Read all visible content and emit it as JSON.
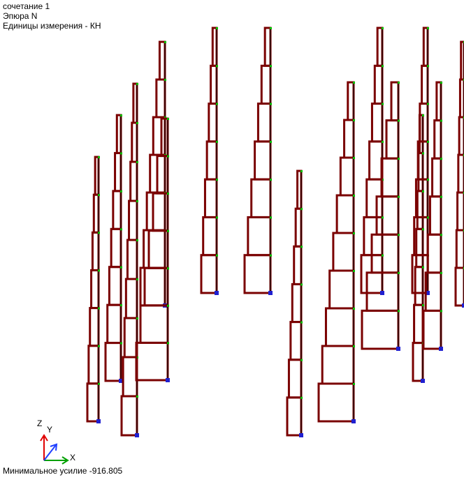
{
  "header": {
    "combination": "сочетание 1",
    "diagram": "Эпюра  N",
    "units": "Единицы измерения - КН"
  },
  "axes": {
    "z": "Z",
    "y": "Y",
    "x": "X"
  },
  "footer": {
    "min_force": "Минимальное усилие  -916.805"
  }
}
